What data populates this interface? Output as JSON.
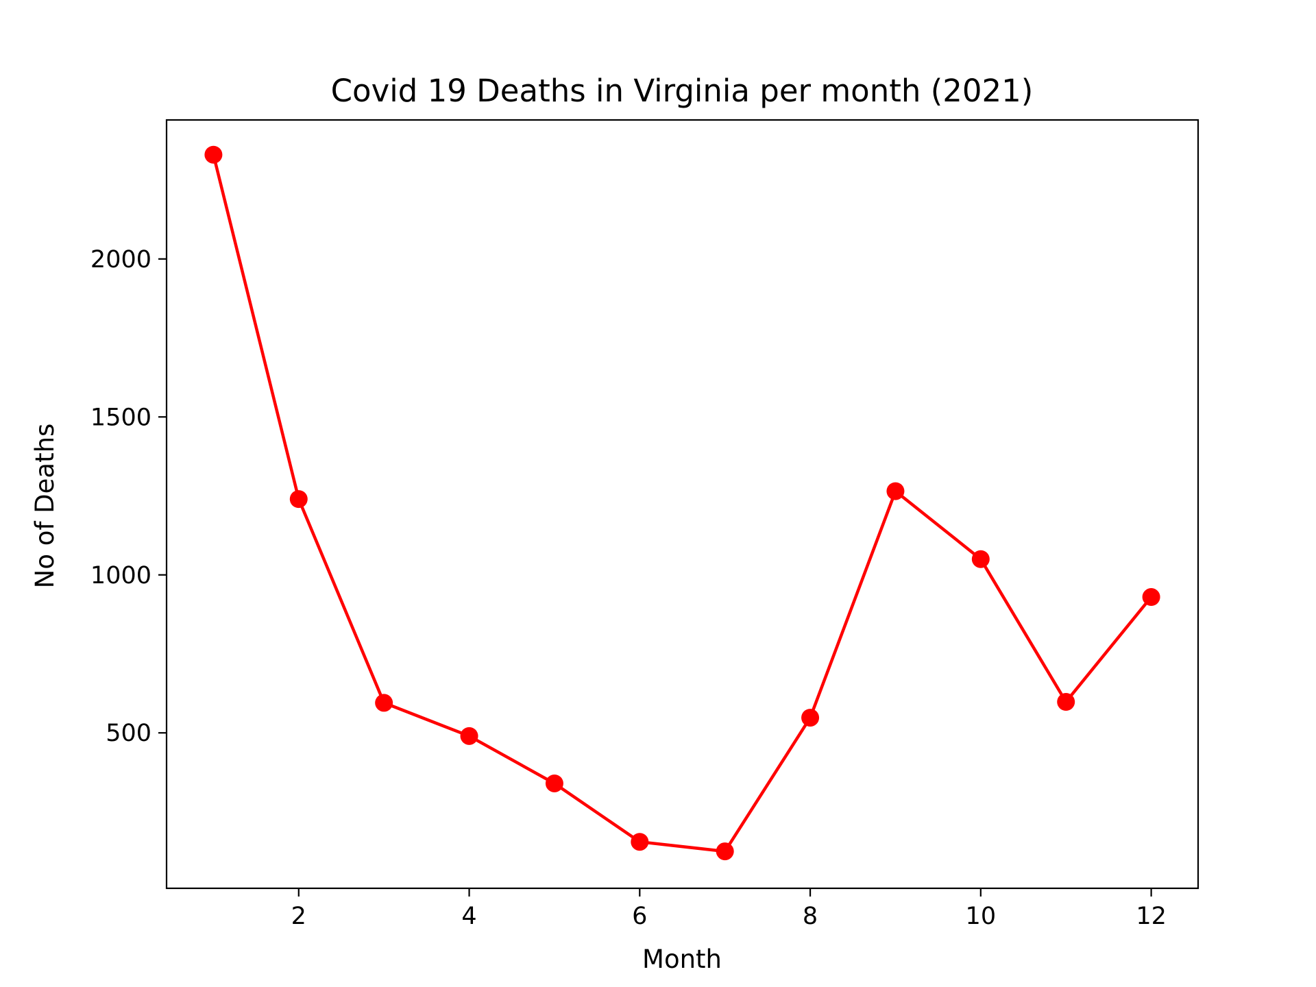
{
  "chart_data": {
    "type": "line",
    "title": "Covid 19 Deaths in Virginia per month (2021)",
    "xlabel": "Month",
    "ylabel": "No of Deaths",
    "x": [
      1,
      2,
      3,
      4,
      5,
      6,
      7,
      8,
      9,
      10,
      11,
      12
    ],
    "values": [
      2330,
      1240,
      595,
      490,
      340,
      155,
      125,
      548,
      1265,
      1050,
      598,
      930
    ],
    "xlim": [
      0.45,
      12.55
    ],
    "ylim": [
      8,
      2440
    ],
    "xticks": [
      2,
      4,
      6,
      8,
      10,
      12
    ],
    "xtick_labels": [
      "2",
      "4",
      "6",
      "8",
      "10",
      "12"
    ],
    "yticks": [
      500,
      1000,
      1500,
      2000
    ],
    "ytick_labels": [
      "500",
      "1000",
      "1500",
      "2000"
    ],
    "grid": false,
    "legend": "none",
    "color": "#ff0000",
    "marker": "circle"
  }
}
